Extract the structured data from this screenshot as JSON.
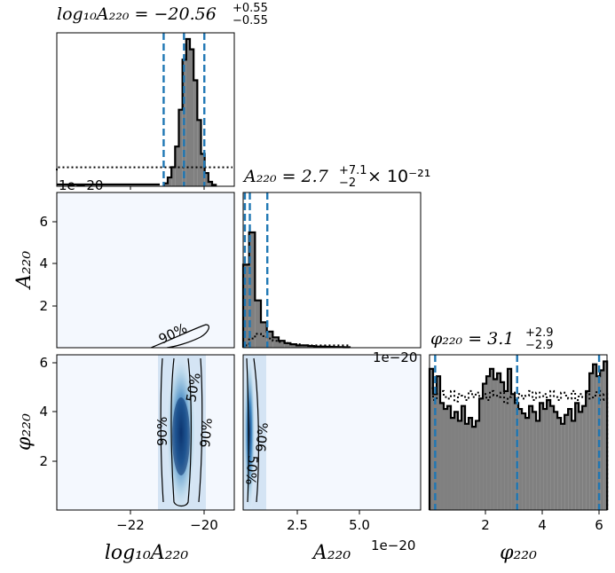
{
  "figure": {
    "title_p0": "log₁₀A₂₂₀ = −20.56",
    "title_p0_sup": "+0.55",
    "title_p0_sub": "−0.55",
    "title_p1": "A₂₂₀ = 2.7",
    "title_p1_sup": "+7.1",
    "title_p1_sub": "−2",
    "title_p1_suffix": "× 10⁻²¹",
    "title_p2": "φ₂₂₀ = 3.1",
    "title_p2_sup": "+2.9",
    "title_p2_sub": "−2.9",
    "xlabel_p0": "log₁₀A₂₂₀",
    "xlabel_p1": "A₂₂₀",
    "xlabel_p2": "φ₂₂₀",
    "ylabel_p1": "A₂₂₀",
    "ylabel_p2": "φ₂₂₀",
    "offset_label_top": "1e−20",
    "offset_label_mid": "1e−20",
    "offset_label_bottom": "1e−20",
    "ticks_x_log": [
      "−22",
      "−20"
    ],
    "ticks_x_amp": [
      "2.5",
      "5.0"
    ],
    "ticks_x_phi": [
      "2",
      "4",
      "6"
    ],
    "ticks_y_amp": [
      "2",
      "4",
      "6"
    ],
    "ticks_y_phi": [
      "2",
      "4",
      "6"
    ],
    "contour_90": "90%",
    "contour_50": "50%"
  },
  "colors": {
    "hist_fill": "#808080",
    "quantile_line": "#1f77b4",
    "density_low": "#f7fbff",
    "density_mid": "#6baed6",
    "density_high": "#08306b"
  },
  "chart_data": {
    "type": "corner",
    "parameters": [
      "log10_A220",
      "A220",
      "phi220"
    ],
    "ranges": {
      "log10_A220": [
        -24.0,
        -19.2
      ],
      "A220": [
        0.0,
        7.2e-20
      ],
      "phi220": [
        0.0,
        6.28
      ]
    },
    "summaries": {
      "log10_A220": {
        "median": -20.56,
        "plus": 0.55,
        "minus": 0.55,
        "quantiles": [
          -21.11,
          -20.56,
          -20.01
        ]
      },
      "A220": {
        "median": 2.7e-21,
        "plus": 7.1e-21,
        "minus": 2e-21,
        "quantiles": [
          7e-22,
          2.7e-21,
          9.8e-21
        ]
      },
      "phi220": {
        "median": 3.1,
        "plus": 2.9,
        "minus": 2.9,
        "quantiles": [
          0.2,
          3.1,
          6.0
        ]
      }
    },
    "hist_log10_A220": {
      "x_start": -21.1,
      "bin_width": 0.1,
      "values": [
        0.02,
        0.06,
        0.13,
        0.27,
        0.52,
        0.86,
        1.0,
        0.93,
        0.72,
        0.45,
        0.22,
        0.09,
        0.03,
        0.01
      ],
      "prior_level": 0.12
    },
    "hist_A220": {
      "x_start": 0.0,
      "bin_width": 2.4e-21,
      "values": [
        0.72,
        1.0,
        0.41,
        0.22,
        0.14,
        0.09,
        0.06,
        0.04,
        0.03,
        0.02,
        0.02,
        0.015,
        0.01,
        0.01,
        0.008,
        0.006,
        0.005,
        0.004
      ],
      "prior_values": [
        0.02,
        0.08,
        0.12,
        0.1,
        0.08,
        0.06,
        0.05,
        0.04,
        0.03,
        0.03,
        0.02,
        0.02,
        0.02,
        0.02,
        0.02,
        0.02,
        0.02,
        0.02
      ]
    },
    "hist_phi220": {
      "x_start": 0.0,
      "bin_width": 0.1257,
      "values": [
        0.95,
        0.78,
        0.9,
        0.72,
        0.68,
        0.7,
        0.62,
        0.66,
        0.6,
        0.7,
        0.58,
        0.62,
        0.56,
        0.6,
        0.75,
        0.85,
        0.9,
        0.95,
        0.88,
        0.92,
        0.86,
        0.8,
        0.95,
        0.78,
        0.72,
        0.68,
        0.65,
        0.62,
        0.7,
        0.66,
        0.6,
        0.72,
        0.68,
        0.74,
        0.7,
        0.66,
        0.62,
        0.58,
        0.64,
        0.68,
        0.6,
        0.72,
        0.66,
        0.7,
        0.8,
        0.92,
        0.98,
        0.9,
        0.94,
        1.0
      ],
      "prior_values": [
        0.82,
        0.74,
        0.78,
        0.8,
        0.76,
        0.75,
        0.8,
        0.73,
        0.78,
        0.77,
        0.74,
        0.8,
        0.76,
        0.79,
        0.75,
        0.78,
        0.74,
        0.8,
        0.77,
        0.76,
        0.79,
        0.72,
        0.76,
        0.79,
        0.74,
        0.78,
        0.75,
        0.77,
        0.8,
        0.74,
        0.79,
        0.76,
        0.78,
        0.73,
        0.8,
        0.76,
        0.74,
        0.79,
        0.77,
        0.75,
        0.8,
        0.74,
        0.78,
        0.76,
        0.79,
        0.75,
        0.77,
        0.8,
        0.74,
        0.78
      ]
    },
    "joint_log_A": {
      "contour_90_x": [
        -20.6,
        -19.3
      ],
      "contour_90_y": [
        0.0,
        1.1
      ]
    },
    "joint_log_phi": {
      "center": -20.56,
      "width_90": [
        -21.15,
        -19.95
      ],
      "width_50": [
        -20.78,
        -20.34
      ]
    },
    "joint_A_phi": {
      "center": 2.7e-21,
      "width_90": [
        0.0,
        9e-21
      ],
      "width_50": [
        5e-22,
        4.5e-21
      ]
    }
  }
}
